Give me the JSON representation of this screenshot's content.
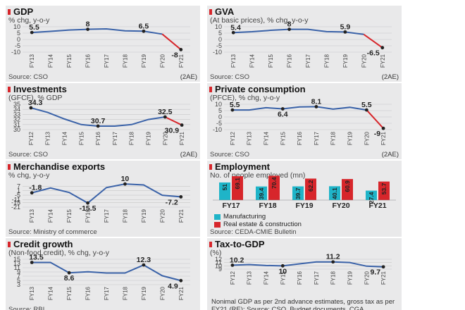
{
  "colors": {
    "line": "#3a62a8",
    "highlight": "#d7262b",
    "bar_manufacturing": "#1fb4c8",
    "bar_real_estate": "#d7262b",
    "grid": "#c8c8c8"
  },
  "chart_data": [
    {
      "type": "line",
      "title": "GDP",
      "subtitle": "% chg, y-o-y",
      "source": "Source: CSO",
      "note": "(2AE)",
      "x": [
        "FY13",
        "FY14",
        "FY15",
        "FY16",
        "FY17",
        "FY18",
        "FY19",
        "FY20",
        "FY21"
      ],
      "values": [
        5.5,
        6.4,
        7.4,
        8,
        8.3,
        6.8,
        6.5,
        4.2,
        -8
      ],
      "yticks": [
        10,
        5,
        0,
        -5,
        -10
      ],
      "ylim": [
        -10,
        10
      ],
      "red_from": 7,
      "labels": [
        {
          "i": 0,
          "text": "5.5"
        },
        {
          "i": 3,
          "text": "8"
        },
        {
          "i": 6,
          "text": "6.5"
        },
        {
          "i": 8,
          "text": "-8"
        }
      ]
    },
    {
      "type": "line",
      "title": "GVA",
      "subtitle": "(At basic prices), % chg, y-o-y",
      "source": "Source: CSO",
      "note": "(2AE)",
      "x": [
        "FY13",
        "FY14",
        "FY15",
        "FY16",
        "FY17",
        "FY18",
        "FY19",
        "FY20",
        "FY21"
      ],
      "values": [
        5.4,
        6.1,
        7.2,
        8,
        8,
        6.2,
        5.9,
        4,
        -6.5
      ],
      "yticks": [
        10,
        5,
        0,
        -5,
        -10
      ],
      "ylim": [
        -10,
        10
      ],
      "red_from": 7,
      "labels": [
        {
          "i": 0,
          "text": "5.4"
        },
        {
          "i": 3,
          "text": "8"
        },
        {
          "i": 6,
          "text": "5.9"
        },
        {
          "i": 8,
          "text": "-6.5"
        }
      ]
    },
    {
      "type": "line",
      "title": "Investments",
      "subtitle": "(GFCF), % GDP",
      "source": "Source: CSO",
      "note": "(2AE)",
      "x": [
        "FY12",
        "FY13",
        "FY14",
        "FY15",
        "FY16",
        "FY17",
        "FY18",
        "FY19",
        "FY20",
        "FY21"
      ],
      "values": [
        34.3,
        33.4,
        32.1,
        31,
        30.7,
        30.7,
        31,
        32,
        32.5,
        30.9
      ],
      "yticks": [
        35,
        34,
        33,
        32,
        31,
        30
      ],
      "ylim": [
        30,
        35
      ],
      "red_from": 8,
      "labels": [
        {
          "i": 0,
          "text": "34.3"
        },
        {
          "i": 4,
          "text": "30.7"
        },
        {
          "i": 8,
          "text": "32.5"
        },
        {
          "i": 9,
          "text": "30.9"
        }
      ]
    },
    {
      "type": "line",
      "title": "Private consumption",
      "subtitle": "(PFCE), % chg, y-o-y",
      "source": "Source: CSO",
      "note": "(2AE)",
      "x": [
        "FY12",
        "FY13",
        "FY14",
        "FY15",
        "FY16",
        "FY17",
        "FY18",
        "FY19",
        "FY20",
        "FY21"
      ],
      "values": [
        5.5,
        5.5,
        7.3,
        6.4,
        7.9,
        8.1,
        6.2,
        7.6,
        5.5,
        -9
      ],
      "yticks": [
        10,
        5,
        0,
        -5,
        -10
      ],
      "ylim": [
        -10,
        10
      ],
      "red_from": 8,
      "labels": [
        {
          "i": 0,
          "text": "5.5"
        },
        {
          "i": 3,
          "text": "6.4"
        },
        {
          "i": 5,
          "text": "8.1"
        },
        {
          "i": 8,
          "text": "5.5"
        },
        {
          "i": 9,
          "text": "-9"
        }
      ]
    },
    {
      "type": "line",
      "title": "Merchandise exports",
      "subtitle": "% chg, y-o-y",
      "source": "Source: Ministry of commerce",
      "note": "",
      "x": [
        "FY13",
        "FY14",
        "FY15",
        "FY16",
        "FY17",
        "FY18",
        "FY19",
        "FY20",
        "FY21"
      ],
      "values": [
        -1.8,
        4.7,
        -1.3,
        -15.5,
        5.2,
        10,
        8.8,
        -5.1,
        -7.2
      ],
      "yticks": [
        7,
        1,
        -5,
        -11,
        -15,
        -21
      ],
      "ylim": [
        -21,
        13
      ],
      "red_from": null,
      "labels": [
        {
          "i": 0,
          "text": "-1.8"
        },
        {
          "i": 3,
          "text": "-15.5"
        },
        {
          "i": 5,
          "text": "10"
        },
        {
          "i": 8,
          "text": "-7.2"
        }
      ]
    },
    {
      "type": "bar",
      "title": "Employment",
      "subtitle": "No. of people employed (mn)",
      "source": "Source: CEDA-CMIE Bulletin",
      "categories": [
        "FY17",
        "FY18",
        "FY19",
        "FY20",
        "FY21"
      ],
      "series": [
        {
          "name": "Manufacturing",
          "values": [
            51,
            39.4,
            39.7,
            40.1,
            27.4
          ],
          "labels": [
            "51",
            "39.4",
            "39.7",
            "40.1",
            "27.4"
          ]
        },
        {
          "name": "Real estate & construction",
          "values": [
            69.1,
            70.4,
            62.2,
            60.9,
            53.7
          ],
          "labels": [
            "69.1",
            "70.4",
            "62.2",
            "60.9",
            "53.7"
          ]
        }
      ],
      "ylim": [
        0,
        120
      ],
      "legend": "bottom-left"
    },
    {
      "type": "line",
      "title": "Credit growth",
      "subtitle": "(Non-food credit), % chg, y-o-y",
      "source": "Source: RBI",
      "note": "",
      "x": [
        "FY13",
        "FY14",
        "FY15",
        "FY16",
        "FY17",
        "FY18",
        "FY19",
        "FY20",
        "FY21"
      ],
      "values": [
        13.5,
        13.5,
        8.6,
        9.1,
        8.5,
        8.5,
        12.3,
        7.2,
        4.9
      ],
      "yticks": [
        15,
        13,
        11,
        9,
        7,
        5,
        3
      ],
      "ylim": [
        3,
        15
      ],
      "red_from": null,
      "labels": [
        {
          "i": 0,
          "text": "13.5"
        },
        {
          "i": 2,
          "text": "8.6"
        },
        {
          "i": 6,
          "text": "12.3"
        },
        {
          "i": 8,
          "text": "4.9"
        }
      ]
    },
    {
      "type": "line",
      "title": "Tax-to-GDP",
      "subtitle": "(%)",
      "source": "",
      "note_text": "Nonimal GDP as per 2nd advance estimates, gross tax as per FY21 (RE); Source: CSO, Budget documents, CGA",
      "x": [
        "FY12",
        "FY13",
        "FY14",
        "FY15",
        "FY16",
        "FY17",
        "FY18",
        "FY19",
        "FY20",
        "FY21"
      ],
      "values": [
        10.2,
        10.4,
        10.1,
        10,
        10.6,
        11.2,
        11.2,
        11,
        9.9,
        9.7
      ],
      "yticks": [
        12,
        11,
        10,
        9
      ],
      "ylim": [
        9,
        12
      ],
      "red_from": null,
      "labels": [
        {
          "i": 0,
          "text": "10.2"
        },
        {
          "i": 3,
          "text": "10"
        },
        {
          "i": 6,
          "text": "11.2"
        },
        {
          "i": 9,
          "text": "9.7"
        }
      ]
    }
  ]
}
